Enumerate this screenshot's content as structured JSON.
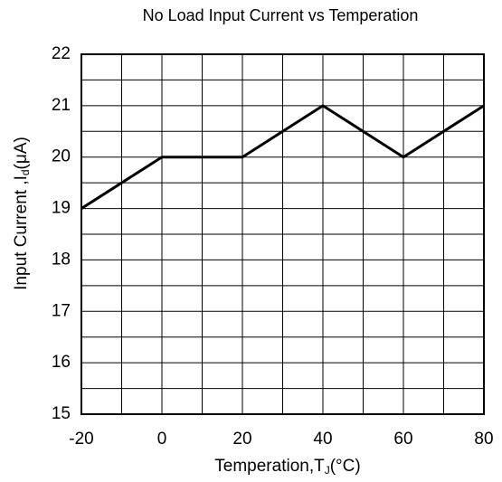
{
  "chart_data": {
    "type": "line",
    "title": "No Load Input Current vs Temperation",
    "xlabel": [
      "Temperation,T",
      "J",
      "(°C)"
    ],
    "ylabel": [
      "Input Current ,I",
      "d",
      "(μA)"
    ],
    "x": [
      -20,
      0,
      20,
      40,
      60,
      80
    ],
    "series": [
      {
        "name": "Input Current",
        "color": "#000000",
        "values": [
          19,
          20,
          20,
          21,
          20,
          21
        ]
      }
    ],
    "xlim": [
      -20,
      80
    ],
    "xticks": [
      -20,
      0,
      20,
      40,
      60,
      80
    ],
    "ylim": [
      15,
      22
    ],
    "yticks": [
      15,
      16,
      17,
      18,
      19,
      20,
      21,
      22
    ],
    "minor_xticks": [
      -10,
      10,
      30,
      50,
      70
    ],
    "minor_yticks": [
      15.5,
      16.5,
      17.5,
      18.5,
      19.5,
      20.5,
      21.5
    ],
    "grid": true
  }
}
